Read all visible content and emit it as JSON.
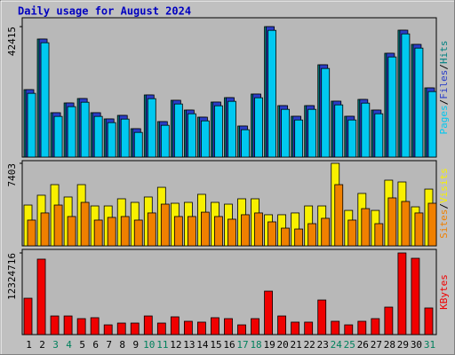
{
  "chart_data": [
    {
      "type": "bar",
      "title": "Daily usage for August 2024",
      "ylim": [
        0,
        42415
      ],
      "yticks": [
        42415
      ],
      "separator": "/",
      "series": [
        {
          "name": "Hits",
          "color": "#008080",
          "values": [
            21930,
            38380,
            14430,
            17600,
            19040,
            14430,
            12410,
            13560,
            9230,
            20200,
            11540,
            18470,
            15290,
            12980,
            17890,
            19330,
            10100,
            20490,
            42415,
            16730,
            13270,
            16730,
            30010,
            18180,
            13270,
            18750,
            15290,
            33760,
            41260,
            36640,
            22500
          ]
        },
        {
          "name": "Files",
          "color": "#2a3ec8",
          "values": [
            21930,
            38380,
            14430,
            17600,
            19040,
            14430,
            12410,
            13560,
            9230,
            20200,
            11540,
            18470,
            15290,
            12980,
            17890,
            19330,
            10100,
            20490,
            42415,
            16730,
            13270,
            16730,
            30010,
            18180,
            13270,
            18750,
            15290,
            33760,
            41260,
            36640,
            22500
          ]
        },
        {
          "name": "Pages",
          "color": "#00c8f0",
          "values": [
            20730,
            37180,
            13230,
            16400,
            17840,
            13230,
            11210,
            12360,
            8030,
            19000,
            10340,
            17270,
            14090,
            11780,
            16690,
            18130,
            8900,
            19290,
            41215,
            15530,
            12070,
            15530,
            28810,
            16980,
            12070,
            17550,
            14090,
            32560,
            40060,
            35440,
            21300
          ]
        }
      ]
    },
    {
      "type": "bar",
      "ylim": [
        0,
        7403
      ],
      "yticks": [
        7403
      ],
      "separator": "/",
      "series": [
        {
          "name": "Visits",
          "color": "#f8f000",
          "values": [
            3660,
            4540,
            5490,
            4380,
            5490,
            3580,
            3580,
            4220,
            3900,
            4380,
            5250,
            3820,
            3900,
            4620,
            3900,
            3740,
            4220,
            4220,
            2790,
            2790,
            2950,
            3580,
            3580,
            7403,
            3180,
            4700,
            3180,
            5890,
            5730,
            3500,
            5090
          ]
        },
        {
          "name": "Sites",
          "color": "#f08000",
          "values": [
            2310,
            2950,
            3660,
            2630,
            3900,
            2310,
            2550,
            2630,
            2310,
            2950,
            3740,
            2630,
            2630,
            3020,
            2630,
            2390,
            2790,
            2950,
            2150,
            1590,
            1510,
            1990,
            2470,
            5490,
            2310,
            3340,
            1990,
            4300,
            3980,
            2950,
            3820
          ]
        }
      ]
    },
    {
      "type": "bar",
      "ylim": [
        0,
        12324716
      ],
      "yticks": [
        12324716
      ],
      "categories": [
        "1",
        "2",
        "3",
        "4",
        "5",
        "6",
        "7",
        "8",
        "9",
        "10",
        "11",
        "12",
        "13",
        "14",
        "15",
        "16",
        "17",
        "18",
        "19",
        "20",
        "21",
        "22",
        "23",
        "24",
        "25",
        "26",
        "27",
        "28",
        "29",
        "30",
        "31"
      ],
      "category_colors": [
        "#000000",
        "#000000",
        "#00805c",
        "#00805c",
        "#000000",
        "#000000",
        "#000000",
        "#000000",
        "#000000",
        "#00805c",
        "#00805c",
        "#000000",
        "#000000",
        "#000000",
        "#000000",
        "#000000",
        "#00805c",
        "#00805c",
        "#000000",
        "#000000",
        "#000000",
        "#000000",
        "#000000",
        "#00805c",
        "#00805c",
        "#000000",
        "#000000",
        "#000000",
        "#000000",
        "#000000",
        "#00805c"
      ],
      "series": [
        {
          "name": "KBytes",
          "color": "#f00000",
          "values": [
            5490000,
            11390000,
            2810000,
            2810000,
            2410000,
            2550000,
            1470000,
            1740000,
            1740000,
            2810000,
            1740000,
            2680000,
            2010000,
            1880000,
            2550000,
            2410000,
            1470000,
            2410000,
            6560000,
            2810000,
            1880000,
            1880000,
            5220000,
            2010000,
            1470000,
            2010000,
            2410000,
            4150000,
            12324716,
            11520000,
            4020000
          ]
        }
      ]
    }
  ]
}
